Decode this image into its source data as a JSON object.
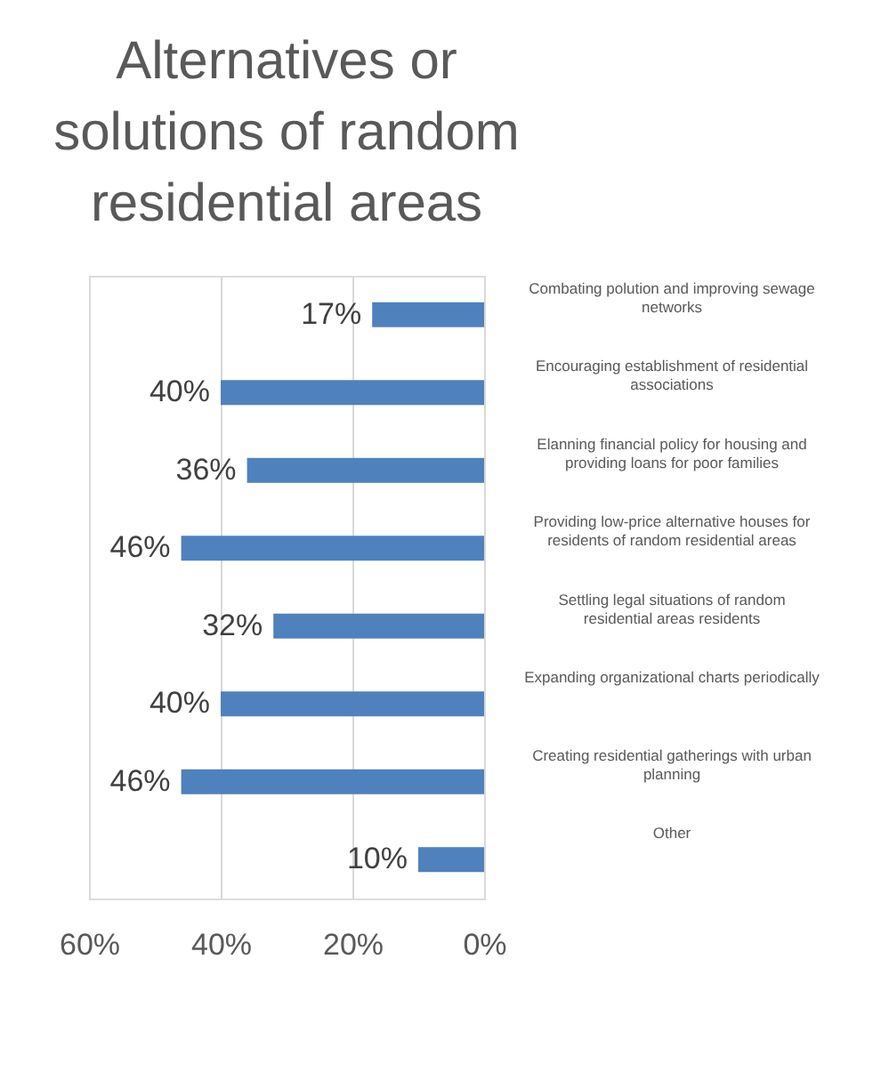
{
  "chart_data": {
    "type": "bar",
    "orientation": "horizontal",
    "title": "Alternatives or solutions of random residential areas",
    "categories": [
      "Combating polution and improving sewage networks",
      "Encouraging establishment of residential associations",
      "Elanning financial policy for housing and providing loans for poor families",
      "Providing low-price alternative houses for residents of random residential areas",
      "Settling legal situations of random residential areas residents",
      "Expanding organizational charts periodically",
      "Creating residential gatherings with urban planning",
      "Other"
    ],
    "values": [
      17,
      40,
      36,
      46,
      32,
      40,
      46,
      10
    ],
    "value_labels": [
      "17%",
      "40%",
      "36%",
      "46%",
      "32%",
      "40%",
      "46%",
      "10%"
    ],
    "color": "#4f81bd",
    "xlim": [
      60,
      0
    ],
    "xticks": [
      {
        "value": 60,
        "label": "60%"
      },
      {
        "value": 40,
        "label": "40%"
      },
      {
        "value": 20,
        "label": "20%"
      },
      {
        "value": 0,
        "label": "0%"
      }
    ],
    "grid": "x"
  }
}
